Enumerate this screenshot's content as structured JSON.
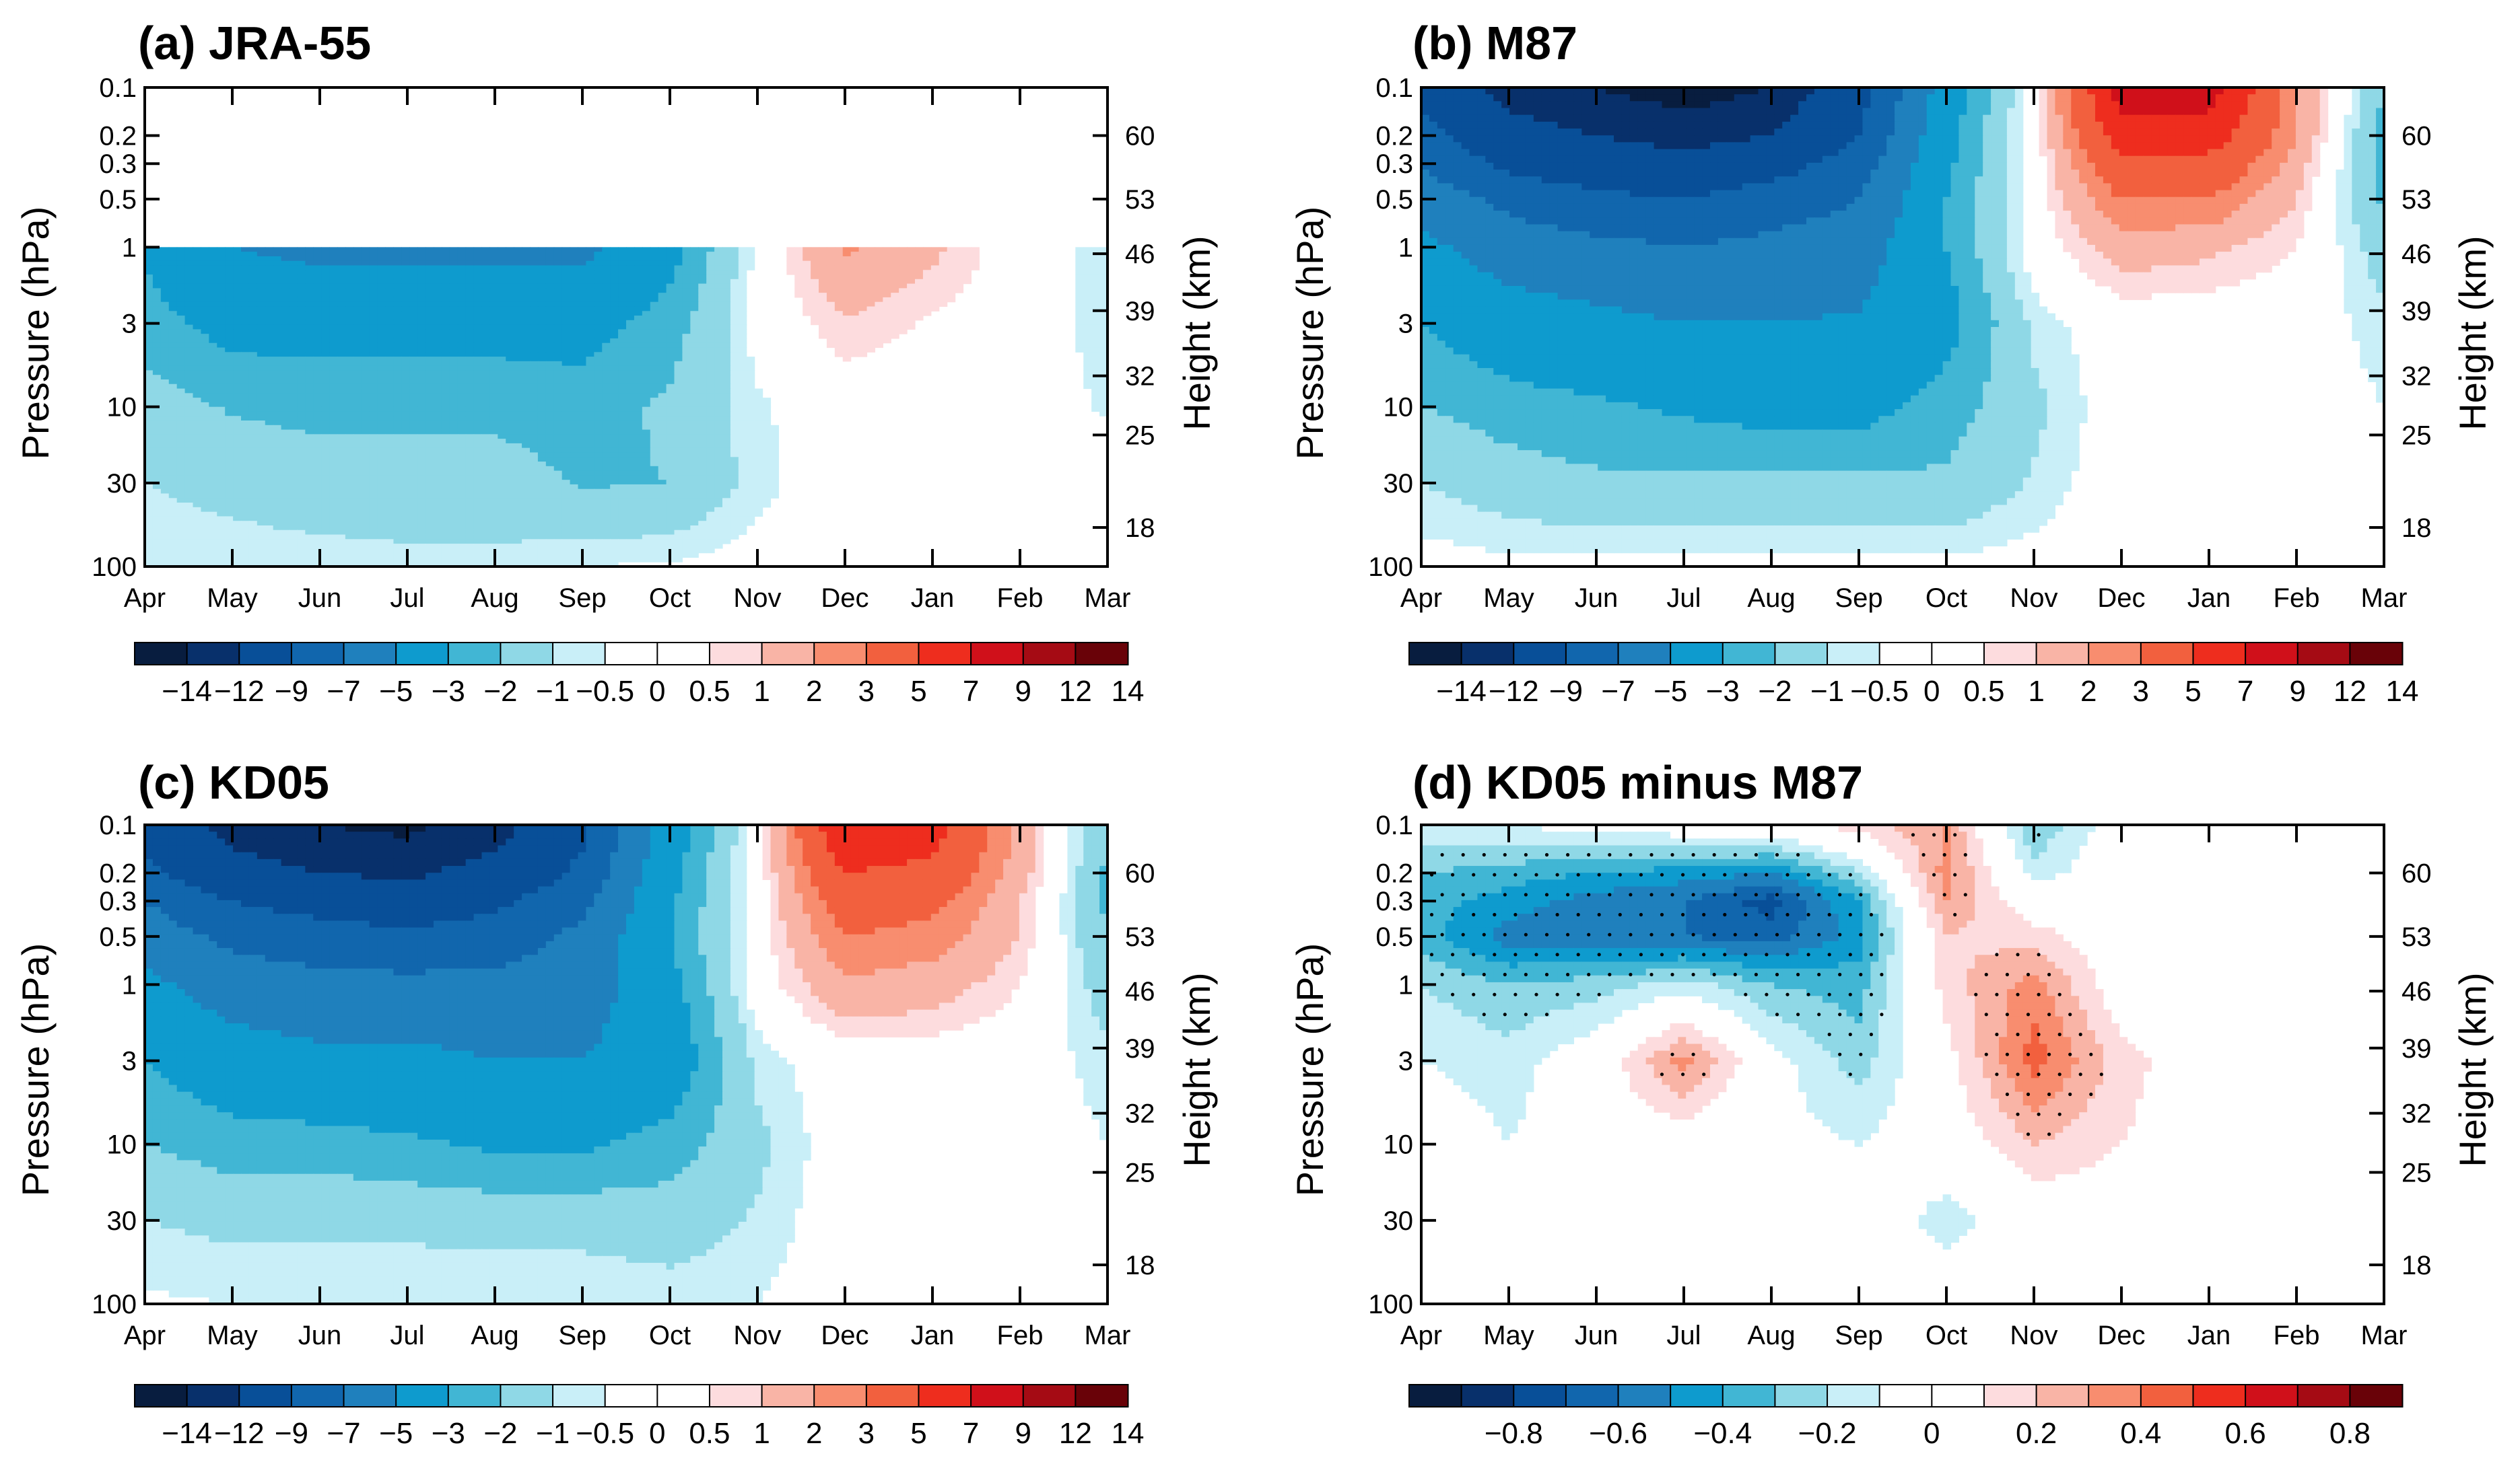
{
  "figure": {
    "colors": {
      "levels": [
        "#081d3f",
        "#08306b",
        "#084f98",
        "#1166ad",
        "#1f80bd",
        "#0e9bce",
        "#41b6d4",
        "#8fd8e6",
        "#c9eff8",
        "#ffffff",
        "#ffffff",
        "#fddcde",
        "#f9b4a6",
        "#f88d6f",
        "#f2603e",
        "#ee2d1e",
        "#d0101a",
        "#a50b14",
        "#690208"
      ],
      "stipple": "#000000"
    },
    "y_axis_left": {
      "label": "Pressure (hPa)",
      "ticks": [
        {
          "label": "0.1",
          "p": 0.1
        },
        {
          "label": "0.2",
          "p": 0.2
        },
        {
          "label": "0.3",
          "p": 0.3
        },
        {
          "label": "0.5",
          "p": 0.5
        },
        {
          "label": "1",
          "p": 1
        },
        {
          "label": "3",
          "p": 3
        },
        {
          "label": "10",
          "p": 10
        },
        {
          "label": "30",
          "p": 30
        },
        {
          "label": "100",
          "p": 100
        }
      ]
    },
    "y_axis_right": {
      "label": "Height (km)",
      "ticks": [
        {
          "label": "60",
          "p": 0.2
        },
        {
          "label": "53",
          "p": 0.5
        },
        {
          "label": "46",
          "p": 1.1
        },
        {
          "label": "39",
          "p": 2.5
        },
        {
          "label": "32",
          "p": 6.4
        },
        {
          "label": "25",
          "p": 15
        },
        {
          "label": "18",
          "p": 57
        }
      ]
    },
    "x_axis": {
      "months": [
        "Apr",
        "May",
        "Jun",
        "Jul",
        "Aug",
        "Sep",
        "Oct",
        "Nov",
        "Dec",
        "Jan",
        "Feb",
        "Mar"
      ]
    },
    "colorbars": {
      "main": {
        "labels": [
          {
            "text": "−14",
            "i": 1
          },
          {
            "text": "−12",
            "i": 2
          },
          {
            "text": "−9",
            "i": 3
          },
          {
            "text": "−7",
            "i": 4
          },
          {
            "text": "−5",
            "i": 5
          },
          {
            "text": "−3",
            "i": 6
          },
          {
            "text": "−2",
            "i": 7
          },
          {
            "text": "−1",
            "i": 8
          },
          {
            "text": "−0.5",
            "i": 9
          },
          {
            "text": "0",
            "i": 10
          },
          {
            "text": "0.5",
            "i": 11
          },
          {
            "text": "1",
            "i": 12
          },
          {
            "text": "2",
            "i": 13
          },
          {
            "text": "3",
            "i": 14
          },
          {
            "text": "5",
            "i": 15
          },
          {
            "text": "7",
            "i": 16
          },
          {
            "text": "9",
            "i": 17
          },
          {
            "text": "12",
            "i": 18
          },
          {
            "text": "14",
            "i": 19
          }
        ]
      },
      "diff": {
        "labels": [
          {
            "text": "−0.8",
            "i": 2
          },
          {
            "text": "−0.6",
            "i": 4
          },
          {
            "text": "−0.4",
            "i": 6
          },
          {
            "text": "−0.2",
            "i": 8
          },
          {
            "text": "0",
            "i": 10
          },
          {
            "text": "0.2",
            "i": 12
          },
          {
            "text": "0.4",
            "i": 14
          },
          {
            "text": "0.6",
            "i": 16
          },
          {
            "text": "0.8",
            "i": 18
          }
        ]
      }
    }
  },
  "chart_data": [
    {
      "id": "a",
      "type": "heatmap",
      "title": "(a) JRA-55",
      "xlabel": "",
      "ylabel": "Pressure (hPa)",
      "ylabel_right": "Height (km)",
      "colorbar": "main",
      "data_top_hpa": 1,
      "pressure_levels_hpa": [
        0.1,
        0.2,
        0.3,
        0.5,
        1,
        3,
        10,
        30,
        100
      ],
      "months": [
        "Apr",
        "May",
        "Jun",
        "Jul",
        "Aug",
        "Sep",
        "Oct",
        "Nov",
        "Dec",
        "Jan",
        "Feb",
        "Mar"
      ],
      "values": [
        [
          null,
          null,
          null,
          null,
          null,
          null,
          null,
          null,
          null,
          null,
          null,
          null
        ],
        [
          null,
          null,
          null,
          null,
          null,
          null,
          null,
          null,
          null,
          null,
          null,
          null
        ],
        [
          null,
          null,
          null,
          null,
          null,
          null,
          null,
          null,
          null,
          null,
          null,
          null
        ],
        [
          null,
          null,
          null,
          null,
          null,
          null,
          null,
          null,
          null,
          null,
          null,
          null
        ],
        [
          -3.2,
          -5,
          -5.5,
          -5.5,
          -5.5,
          -5.5,
          -3.5,
          -0.3,
          2.2,
          1.2,
          0,
          -0.8
        ],
        [
          -2.5,
          -3.5,
          -3.5,
          -3.5,
          -3.5,
          -3.5,
          -2.5,
          -0.2,
          0.9,
          0.4,
          0,
          -0.8
        ],
        [
          -1.5,
          -2.1,
          -2.3,
          -2.3,
          -2.3,
          -2.5,
          -1.8,
          -0.6,
          0,
          0,
          0,
          -0.6
        ],
        [
          -1,
          -1.3,
          -1.5,
          -1.5,
          -1.5,
          -2.1,
          -2,
          -0.7,
          0,
          0,
          0,
          0
        ],
        [
          -0.5,
          -0.6,
          -0.7,
          -0.8,
          -0.8,
          -0.5,
          -0.4,
          -0.2,
          0,
          0,
          0,
          0
        ]
      ]
    },
    {
      "id": "b",
      "type": "heatmap",
      "title": "(b) M87",
      "xlabel": "",
      "ylabel": "Pressure (hPa)",
      "ylabel_right": "Height (km)",
      "colorbar": "main",
      "data_top_hpa": 0.1,
      "pressure_levels_hpa": [
        0.1,
        0.2,
        0.3,
        0.5,
        1,
        3,
        10,
        30,
        100
      ],
      "months": [
        "Apr",
        "May",
        "Jun",
        "Jul",
        "Aug",
        "Sep",
        "Oct",
        "Nov",
        "Dec",
        "Jan",
        "Feb",
        "Mar"
      ],
      "values": [
        [
          -10,
          -13,
          -14,
          -15,
          -14,
          -10,
          -4,
          0,
          8,
          8,
          2,
          -2
        ],
        [
          -8,
          -11,
          -12,
          -13,
          -12,
          -9,
          -3.5,
          0,
          6,
          6,
          2,
          -2.5
        ],
        [
          -7,
          -9.5,
          -10.5,
          -11,
          -10,
          -8,
          -3.3,
          0,
          4.5,
          4.5,
          1.5,
          -2.5
        ],
        [
          -6,
          -7.5,
          -8.5,
          -9,
          -8,
          -7,
          -3,
          0,
          3,
          3,
          1,
          -2.2
        ],
        [
          -4.5,
          -6,
          -6.5,
          -7,
          -6.5,
          -6,
          -3,
          0,
          1.5,
          1.2,
          0.5,
          -1.5
        ],
        [
          -3,
          -4,
          -4.5,
          -5,
          -5,
          -4.8,
          -3.5,
          -0.8,
          0,
          0,
          0,
          -0.8
        ],
        [
          -2,
          -2.5,
          -2.8,
          -3.2,
          -3.5,
          -3.5,
          -2.5,
          -1.2,
          0,
          0,
          0,
          -0.5
        ],
        [
          -1,
          -1.5,
          -1.8,
          -1.8,
          -1.8,
          -1.8,
          -1.8,
          -0.9,
          0,
          0,
          0,
          -0.3
        ],
        [
          -0.2,
          -0.3,
          -0.3,
          -0.3,
          -0.3,
          -0.3,
          -0.3,
          -0.2,
          0,
          0,
          0,
          0
        ]
      ]
    },
    {
      "id": "c",
      "type": "heatmap",
      "title": "(c) KD05",
      "xlabel": "",
      "ylabel": "Pressure (hPa)",
      "ylabel_right": "Height (km)",
      "colorbar": "main",
      "data_top_hpa": 0.1,
      "pressure_levels_hpa": [
        0.1,
        0.2,
        0.3,
        0.5,
        1,
        3,
        10,
        30,
        100
      ],
      "months": [
        "Apr",
        "May",
        "Jun",
        "Jul",
        "Aug",
        "Sep",
        "Oct",
        "Nov",
        "Dec",
        "Jan",
        "Feb",
        "Mar"
      ],
      "values": [
        [
          -10,
          -13,
          -14,
          -14.5,
          -13,
          -9.5,
          -4,
          0,
          7,
          6,
          1.5,
          -2
        ],
        [
          -8.5,
          -11,
          -12,
          -12.5,
          -11,
          -8.5,
          -3.5,
          0,
          5,
          4.5,
          1.5,
          -2.2
        ],
        [
          -7,
          -9,
          -10,
          -10.5,
          -9.5,
          -7.5,
          -3.2,
          0,
          4,
          3.5,
          1,
          -2.2
        ],
        [
          -6,
          -7.5,
          -8,
          -8.5,
          -8,
          -6.5,
          -3,
          0,
          3,
          2.5,
          1,
          -2
        ],
        [
          -4.5,
          -6,
          -6.5,
          -6.5,
          -6.5,
          -6,
          -3.5,
          0,
          1.8,
          1.5,
          0.5,
          -1.5
        ],
        [
          -3,
          -4,
          -4.5,
          -4.5,
          -5,
          -5,
          -4,
          -0.8,
          0,
          0,
          0,
          -0.8
        ],
        [
          -2,
          -2.5,
          -2.5,
          -2.8,
          -3.2,
          -3.2,
          -2.5,
          -1.2,
          0,
          0,
          0,
          -0.5
        ],
        [
          -1,
          -1.2,
          -1.2,
          -1.2,
          -1.3,
          -1.3,
          -1.5,
          -0.9,
          0,
          0,
          0,
          -0.3
        ],
        [
          -0.4,
          -0.5,
          -0.5,
          -0.5,
          -0.5,
          -0.5,
          -0.6,
          -0.5,
          0,
          0,
          0,
          0
        ]
      ]
    },
    {
      "id": "d",
      "type": "heatmap",
      "title": "(d) KD05 minus M87",
      "xlabel": "",
      "ylabel": "Pressure (hPa)",
      "ylabel_right": "Height (km)",
      "colorbar": "diff",
      "data_top_hpa": 0.1,
      "pressure_levels_hpa": [
        0.1,
        0.2,
        0.3,
        0.5,
        1,
        3,
        10,
        30,
        100
      ],
      "months": [
        "Apr",
        "May",
        "Jun",
        "Jul",
        "Aug",
        "Sep",
        "Oct",
        "Nov",
        "Dec",
        "Jan",
        "Feb",
        "Mar"
      ],
      "values": [
        [
          -0.1,
          -0.1,
          -0.05,
          0,
          0.05,
          0.15,
          0.3,
          -0.3,
          0,
          0.1,
          0.05,
          0
        ],
        [
          -0.3,
          -0.35,
          -0.4,
          -0.45,
          -0.5,
          -0.2,
          0.35,
          -0.15,
          0,
          0,
          0,
          0
        ],
        [
          -0.35,
          -0.45,
          -0.55,
          -0.6,
          -0.75,
          -0.4,
          0.3,
          0,
          0,
          0,
          0,
          0
        ],
        [
          -0.35,
          -0.55,
          -0.6,
          -0.6,
          -0.65,
          -0.45,
          0.2,
          0.15,
          0,
          0,
          0,
          0
        ],
        [
          -0.2,
          -0.3,
          -0.25,
          -0.15,
          -0.3,
          -0.35,
          0.15,
          0.35,
          0,
          0,
          0,
          0
        ],
        [
          -0.1,
          -0.15,
          0,
          0.35,
          -0.05,
          -0.25,
          0.05,
          0.45,
          0.15,
          0,
          0,
          0
        ],
        [
          0,
          -0.1,
          0,
          0,
          -0.05,
          -0.1,
          0,
          0.2,
          0.1,
          0,
          0,
          0
        ],
        [
          0,
          0,
          0,
          0,
          0,
          0,
          -0.15,
          0,
          0,
          0,
          0,
          0
        ],
        [
          0,
          0,
          0,
          0,
          0,
          0,
          0,
          0,
          0,
          0,
          0,
          0
        ]
      ]
    }
  ]
}
